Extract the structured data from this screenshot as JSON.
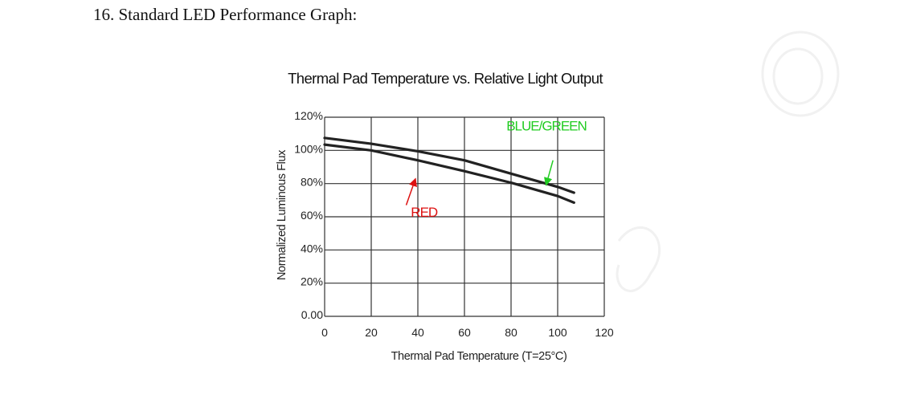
{
  "heading": "16. Standard LED Performance Graph:",
  "chart_data": {
    "type": "line",
    "title": "Thermal Pad Temperature vs. Relative Light Output",
    "xlabel": "Thermal Pad Temperature (T=25°C)",
    "ylabel": "Normalized Luminous Flux",
    "xlim": [
      0,
      120
    ],
    "ylim": [
      0,
      120
    ],
    "x_ticks": [
      "0",
      "20",
      "40",
      "60",
      "80",
      "100",
      "120"
    ],
    "y_ticks": [
      "0.00",
      "20%",
      "40%",
      "60%",
      "80%",
      "100%",
      "120%"
    ],
    "grid": true,
    "series": [
      {
        "name": "BLUE/GREEN",
        "label_color": "#22cc22",
        "line_color": "#222222",
        "x": [
          0,
          20,
          40,
          60,
          80,
          100,
          107
        ],
        "y": [
          107.5,
          104,
          99.5,
          94,
          86,
          78,
          74.5
        ]
      },
      {
        "name": "RED",
        "label_color": "#dd1111",
        "line_color": "#222222",
        "x": [
          0,
          20,
          40,
          60,
          80,
          100,
          107
        ],
        "y": [
          103.5,
          100,
          94,
          87.5,
          80.5,
          72.5,
          68.5
        ]
      }
    ],
    "annotations": [
      {
        "text": "BLUE/GREEN",
        "color": "#22cc22",
        "x": 78,
        "y": 112,
        "arrow_from": [
          98,
          94
        ],
        "arrow_to": [
          95,
          79
        ]
      },
      {
        "text": "RED",
        "color": "#dd1111",
        "x": 37,
        "y": 60,
        "arrow_from": [
          35,
          67
        ],
        "arrow_to": [
          39,
          83
        ]
      }
    ]
  }
}
